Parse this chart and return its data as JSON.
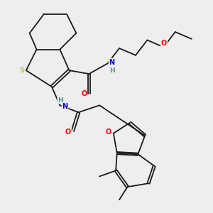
{
  "bg_color": "#eeeeee",
  "bond_color": "#1a1a1a",
  "atom_colors": {
    "O": "#ff0000",
    "N": "#0000cc",
    "S": "#cccc00",
    "H_gray": "#4a9090",
    "C": "#1a1a1a"
  }
}
